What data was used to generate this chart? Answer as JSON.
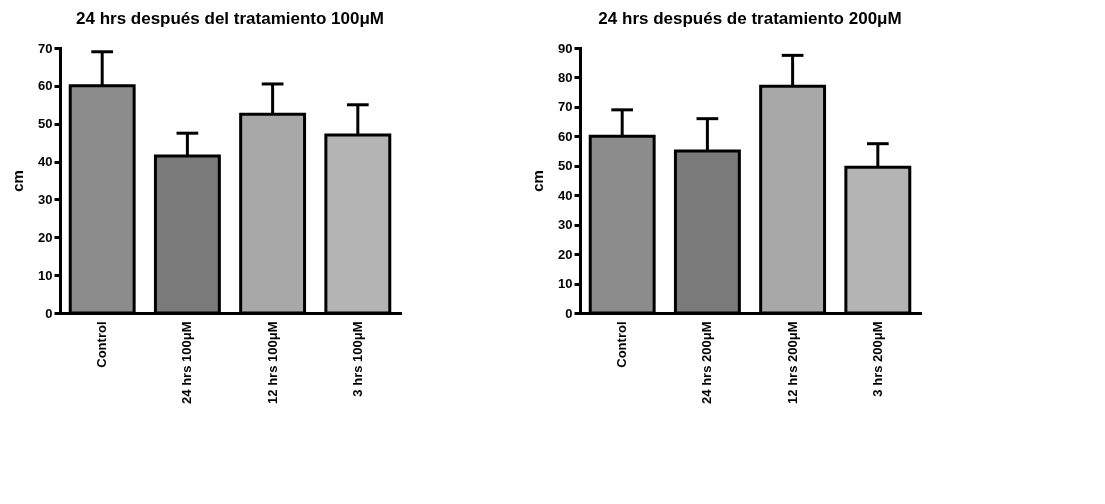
{
  "chart_data": [
    {
      "type": "bar",
      "title": "24 hrs después del tratamiento 100μM",
      "ylabel": "cm",
      "categories": [
        "Control",
        "24 hrs 100μM",
        "12 hrs 100μM",
        "3 hrs 100μM"
      ],
      "values": [
        60,
        41.5,
        52.5,
        47
      ],
      "errors": [
        [
          60,
          69
        ],
        [
          41.5,
          47.5
        ],
        [
          52.5,
          60.5
        ],
        [
          47,
          55
        ]
      ],
      "colors": [
        "#8c8c8c",
        "#7a7a7a",
        "#a8a8a8",
        "#b4b4b4"
      ],
      "ylim": [
        0,
        70
      ],
      "yticks": [
        0,
        10,
        20,
        30,
        40,
        50,
        60,
        70
      ],
      "grid": false
    },
    {
      "type": "bar",
      "title": "24 hrs después de tratamiento 200μM",
      "ylabel": "cm",
      "categories": [
        "Control",
        "24 hrs 200μM",
        "12 hrs 200μM",
        "3 hrs 200μM"
      ],
      "values": [
        60,
        55,
        77,
        49.5
      ],
      "errors": [
        [
          60,
          69
        ],
        [
          55,
          66
        ],
        [
          77,
          87.5
        ],
        [
          49.5,
          57.5
        ]
      ],
      "colors": [
        "#8c8c8c",
        "#7a7a7a",
        "#a8a8a8",
        "#b4b4b4"
      ],
      "ylim": [
        0,
        90
      ],
      "yticks": [
        0,
        10,
        20,
        30,
        40,
        50,
        60,
        70,
        80,
        90
      ],
      "grid": false
    }
  ]
}
